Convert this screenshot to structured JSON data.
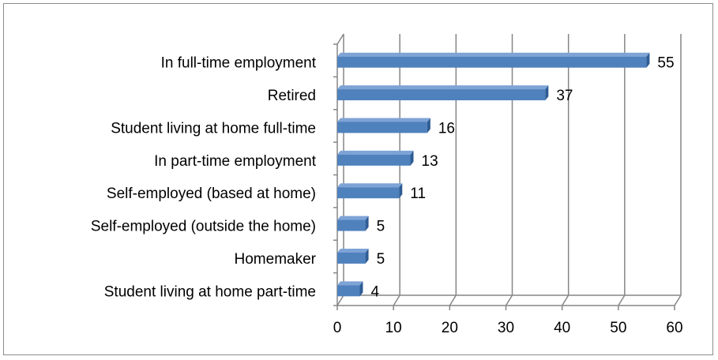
{
  "chart_data": {
    "type": "bar",
    "orientation": "horizontal",
    "style": "3d",
    "categories": [
      "In full-time employment",
      "Retired",
      "Student living at home full-time",
      "In part-time employment",
      "Self-employed (based at home)",
      "Self-employed (outside the home)",
      "Homemaker",
      "Student living at home part-time"
    ],
    "values": [
      55,
      37,
      16,
      13,
      11,
      5,
      5,
      4
    ],
    "data_labels": [
      "55",
      "37",
      "16",
      "13",
      "11",
      "5",
      "5",
      "4"
    ],
    "title": "",
    "xlabel": "",
    "ylabel": "",
    "xlim": [
      0,
      60
    ],
    "x_ticks": [
      0,
      10,
      20,
      30,
      40,
      50,
      60
    ],
    "x_tick_labels": [
      "0",
      "10",
      "20",
      "30",
      "40",
      "50",
      "60"
    ],
    "grid": "vertical",
    "legend": "none",
    "bar_color": "#4F81BD"
  },
  "colors": {
    "bar_front": "#4F81BD",
    "bar_top": "#7EA3D6",
    "bar_side": "#2E5C94",
    "gridline": "#868686",
    "frame_border": "#8c8c8c"
  }
}
